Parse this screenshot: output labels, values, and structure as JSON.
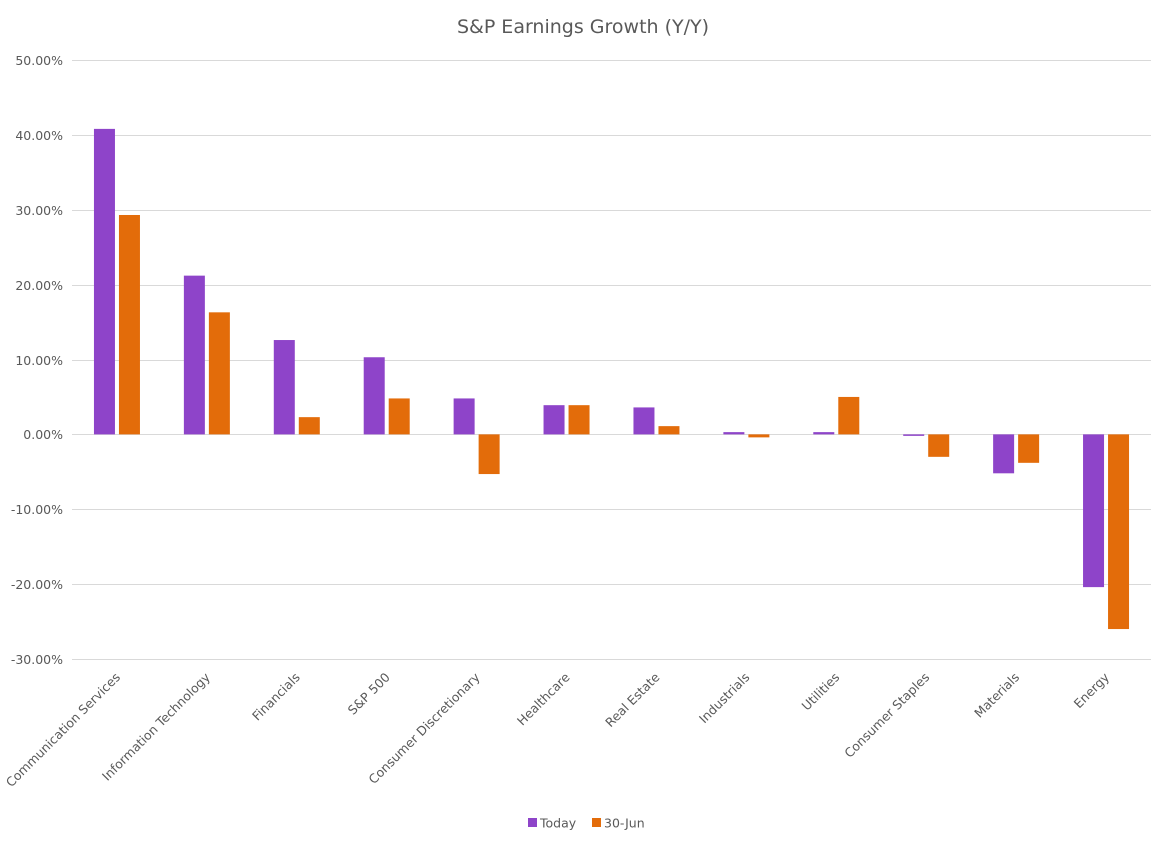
{
  "chart_data": {
    "type": "bar",
    "title": "S&P Earnings Growth (Y/Y)",
    "xlabel": "",
    "ylabel": "",
    "ylim": [
      -0.3,
      0.5
    ],
    "yticks": [
      0.5,
      0.4,
      0.3,
      0.2,
      0.1,
      0.0,
      -0.1,
      -0.2,
      -0.3
    ],
    "ytick_labels": [
      "50.00%",
      "40.00%",
      "30.00%",
      "20.00%",
      "10.00%",
      "0.00%",
      "-10.00%",
      "-20.00%",
      "-30.00%"
    ],
    "grid": true,
    "legend_position": "bottom-center",
    "categories": [
      "Communication Services",
      "Information Technology",
      "Financials",
      "S&P 500",
      "Consumer Discretionary",
      "Healthcare",
      "Real Estate",
      "Industrials",
      "Utilities",
      "Consumer Staples",
      "Materials",
      "Energy"
    ],
    "series": [
      {
        "name": "Today",
        "color": "#8e44c9",
        "values": [
          0.408,
          0.212,
          0.126,
          0.103,
          0.048,
          0.039,
          0.036,
          0.003,
          0.003,
          -0.002,
          -0.052,
          -0.204
        ]
      },
      {
        "name": "30-Jun",
        "color": "#e36c0a",
        "values": [
          0.293,
          0.163,
          0.023,
          0.048,
          -0.053,
          0.039,
          0.011,
          -0.004,
          0.05,
          -0.03,
          -0.038,
          -0.26
        ]
      }
    ]
  }
}
